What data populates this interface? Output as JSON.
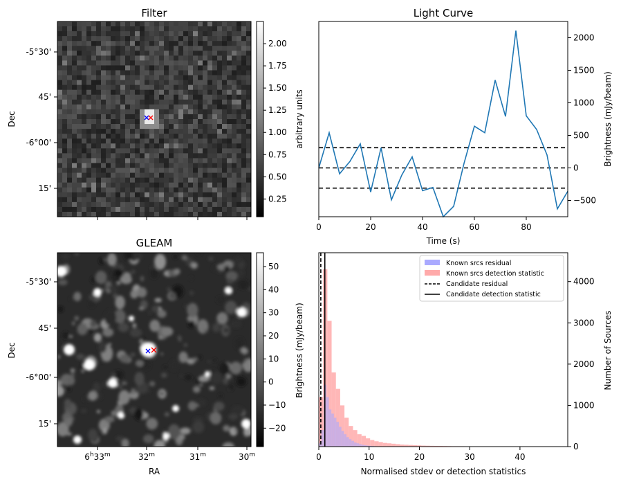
{
  "panels": {
    "filter": {
      "title": "Filter",
      "ylabel": "Dec",
      "yticks": [
        "-5°30'",
        "45'",
        "-6°00'",
        "15'"
      ],
      "colorbar_label": "arbitrary units",
      "colorbar_ticks": [
        "0.25",
        "0.50",
        "0.75",
        "1.00",
        "1.25",
        "1.50",
        "1.75",
        "2.00"
      ],
      "colorbar_range": [
        0.05,
        2.25
      ]
    },
    "gleam": {
      "title": "GLEAM",
      "xlabel": "RA",
      "ylabel": "Dec",
      "yticks": [
        "-5°30'",
        "45'",
        "-6°00'",
        "15'"
      ],
      "xticks": [
        {
          "main": "6",
          "sup1": "h",
          "mid": "33",
          "sup2": "m"
        },
        {
          "main": "",
          "sup1": "",
          "mid": "32",
          "sup2": "m"
        },
        {
          "main": "",
          "sup1": "",
          "mid": "31",
          "sup2": "m"
        },
        {
          "main": "",
          "sup1": "",
          "mid": "30",
          "sup2": "m"
        }
      ],
      "colorbar_label": "Brightness (mJy/beam)",
      "colorbar_ticks": [
        "−20",
        "−10",
        "0",
        "10",
        "20",
        "30",
        "40",
        "50"
      ],
      "colorbar_range": [
        -28,
        56
      ]
    }
  },
  "chart_data": [
    {
      "type": "line",
      "title": "Light Curve",
      "xlabel": "Time (s)",
      "ylabel": "Brightness (mJy/beam)",
      "xlim": [
        0,
        96
      ],
      "ylim": [
        -750,
        2250
      ],
      "xticks": [
        "0",
        "20",
        "40",
        "60",
        "80"
      ],
      "yticks": [
        "−500",
        "0",
        "500",
        "1000",
        "1500",
        "2000"
      ],
      "series": [
        {
          "color": "#1f77b4",
          "x": [
            0,
            4,
            8,
            12,
            16,
            20,
            24,
            28,
            32,
            36,
            40,
            44,
            48,
            52,
            56,
            60,
            64,
            68,
            72,
            76,
            80,
            84,
            88,
            92,
            96
          ],
          "y": [
            0,
            540,
            -90,
            100,
            370,
            -370,
            310,
            -490,
            -110,
            170,
            -350,
            -300,
            -750,
            -590,
            70,
            640,
            540,
            1350,
            790,
            2110,
            800,
            590,
            200,
            -630,
            -360
          ]
        }
      ],
      "hlines": [
        {
          "y": 310,
          "style": "dashed",
          "color": "#000000"
        },
        {
          "y": 0,
          "style": "dashed",
          "color": "#000000"
        },
        {
          "y": -310,
          "style": "dashed",
          "color": "#000000"
        }
      ]
    },
    {
      "type": "histogram",
      "xlabel": "Normalised stdev or detection statistics",
      "ylabel": "Number of Sources",
      "xlim": [
        0,
        49.5
      ],
      "ylim": [
        0,
        4700
      ],
      "xticks": [
        "0",
        "10",
        "20",
        "30",
        "40"
      ],
      "yticks": [
        "0",
        "1000",
        "2000",
        "3000",
        "4000"
      ],
      "legend_position": "upper-right",
      "legend": [
        {
          "label": "Known srcs residual",
          "kind": "patch",
          "color": "#aaaaff"
        },
        {
          "label": "Known srcs detection statistic",
          "kind": "patch",
          "color": "#ffaaaa"
        },
        {
          "label": "Candidate residual",
          "kind": "line-dashed",
          "color": "#000000"
        },
        {
          "label": "Candidate detection statistic",
          "kind": "line-solid",
          "color": "#000000"
        }
      ],
      "residual": {
        "color": "#aaaaff",
        "bin_width": 0.5,
        "bin_start": 0,
        "values": [
          80,
          400,
          1500,
          1200,
          900,
          800,
          700,
          600,
          480,
          380,
          300,
          230,
          180,
          140,
          100,
          80,
          60,
          45,
          35,
          25,
          20,
          15,
          10,
          8,
          5
        ]
      },
      "detection": {
        "color": "#ffaaaa",
        "bin_width": 0.85,
        "bin_start": 0,
        "values": [
          1200,
          4300,
          3050,
          1800,
          1400,
          1000,
          700,
          500,
          400,
          300,
          260,
          200,
          160,
          130,
          110,
          90,
          80,
          70,
          60,
          50,
          45,
          40,
          35,
          30,
          25,
          22,
          20,
          18,
          16,
          14,
          12,
          10,
          10,
          9,
          8,
          7,
          6,
          5,
          5,
          4,
          4,
          3,
          3,
          3,
          2,
          2,
          2,
          2,
          2,
          1,
          1,
          1,
          1,
          1,
          1,
          1
        ]
      },
      "candidate_residual_x": 0.4,
      "candidate_detection_x": 1.2
    }
  ]
}
